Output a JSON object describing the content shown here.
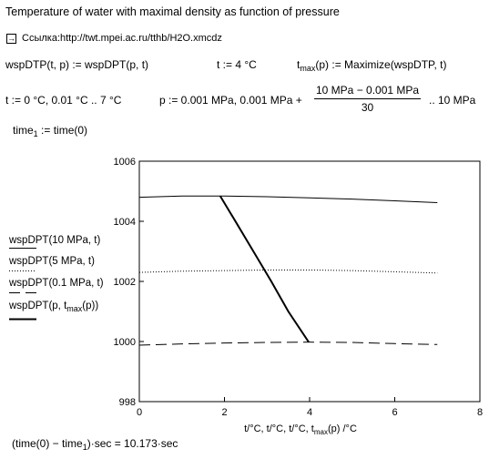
{
  "header": {
    "title": "Temperature of water with maximal density as function of pressure",
    "link_icon": "hyperlink-arrow-icon",
    "link_text": "Ссылка:http://twt.mpei.ac.ru/tthb/H2O.xmcdz"
  },
  "equations": {
    "def_wspdtp": "wspDTP(t, p) := wspDPT(p, t)",
    "def_t": "t := 4 °C",
    "def_tmax_lhs": "t",
    "def_tmax_sub": "max",
    "def_tmax_rhs": "(p) := Maximize(wspDTP, t)",
    "range_t": "t := 0 °C, 0.01 °C .. 7 °C",
    "range_p_start": "p := 0.001 MPa, 0.001 MPa +",
    "range_p_num": "10 MPa − 0.001 MPa",
    "range_p_den": "30",
    "range_p_end": ".. 10 MPa",
    "time1_lhs": "time",
    "time1_sub": "1",
    "time1_rhs": " := time(0)",
    "result_a": "(time(0) − time",
    "result_sub": "1",
    "result_b": ")·sec = 10.173·sec"
  },
  "legend": [
    {
      "label": "wspDPT(10 MPa, t)",
      "style": "solid"
    },
    {
      "label": "wspDPT(5 MPa, t)",
      "style": "dotted"
    },
    {
      "label": "wspDPT(0.1 MPa, t)",
      "style": "dashed"
    },
    {
      "label_a": "wspDPT(p, t",
      "label_sub": "max",
      "label_b": "(p))",
      "style": "thick"
    }
  ],
  "chart_data": {
    "type": "line",
    "xlabel": "t/°C, t/°C, t/°C, t",
    "xlabel_sub": "max",
    "xlabel_end": "(p) /°C",
    "xlim": [
      0,
      8
    ],
    "ylim": [
      998,
      1006
    ],
    "x_ticks": [
      0,
      2,
      4,
      6,
      8
    ],
    "y_ticks": [
      998,
      1000,
      1002,
      1004,
      1006
    ],
    "series": [
      {
        "name": "wspDPT(10 MPa, t)",
        "style": "solid",
        "color": "#000000",
        "x": [
          0,
          1,
          2,
          3,
          4,
          5,
          6,
          7
        ],
        "values": [
          1004.8,
          1004.84,
          1004.84,
          1004.82,
          1004.78,
          1004.74,
          1004.68,
          1004.62
        ]
      },
      {
        "name": "wspDPT(5 MPa, t)",
        "style": "dotted",
        "color": "#000000",
        "x": [
          0,
          1,
          2,
          3,
          4,
          5,
          6,
          7
        ],
        "values": [
          1002.3,
          1002.34,
          1002.36,
          1002.38,
          1002.38,
          1002.36,
          1002.32,
          1002.28
        ]
      },
      {
        "name": "wspDPT(0.1 MPa, t)",
        "style": "dashed",
        "color": "#000000",
        "x": [
          0,
          1,
          2,
          3,
          4,
          5,
          6,
          7
        ],
        "values": [
          999.88,
          999.92,
          999.95,
          999.97,
          999.98,
          999.97,
          999.93,
          999.9
        ]
      },
      {
        "name": "wspDPT(p, tmax(p))",
        "style": "thick",
        "color": "#000000",
        "x": [
          1.9,
          2.3,
          2.7,
          3.1,
          3.5,
          3.98
        ],
        "values": [
          1004.84,
          1003.9,
          1002.95,
          1002.0,
          1001.0,
          999.98
        ]
      }
    ]
  }
}
